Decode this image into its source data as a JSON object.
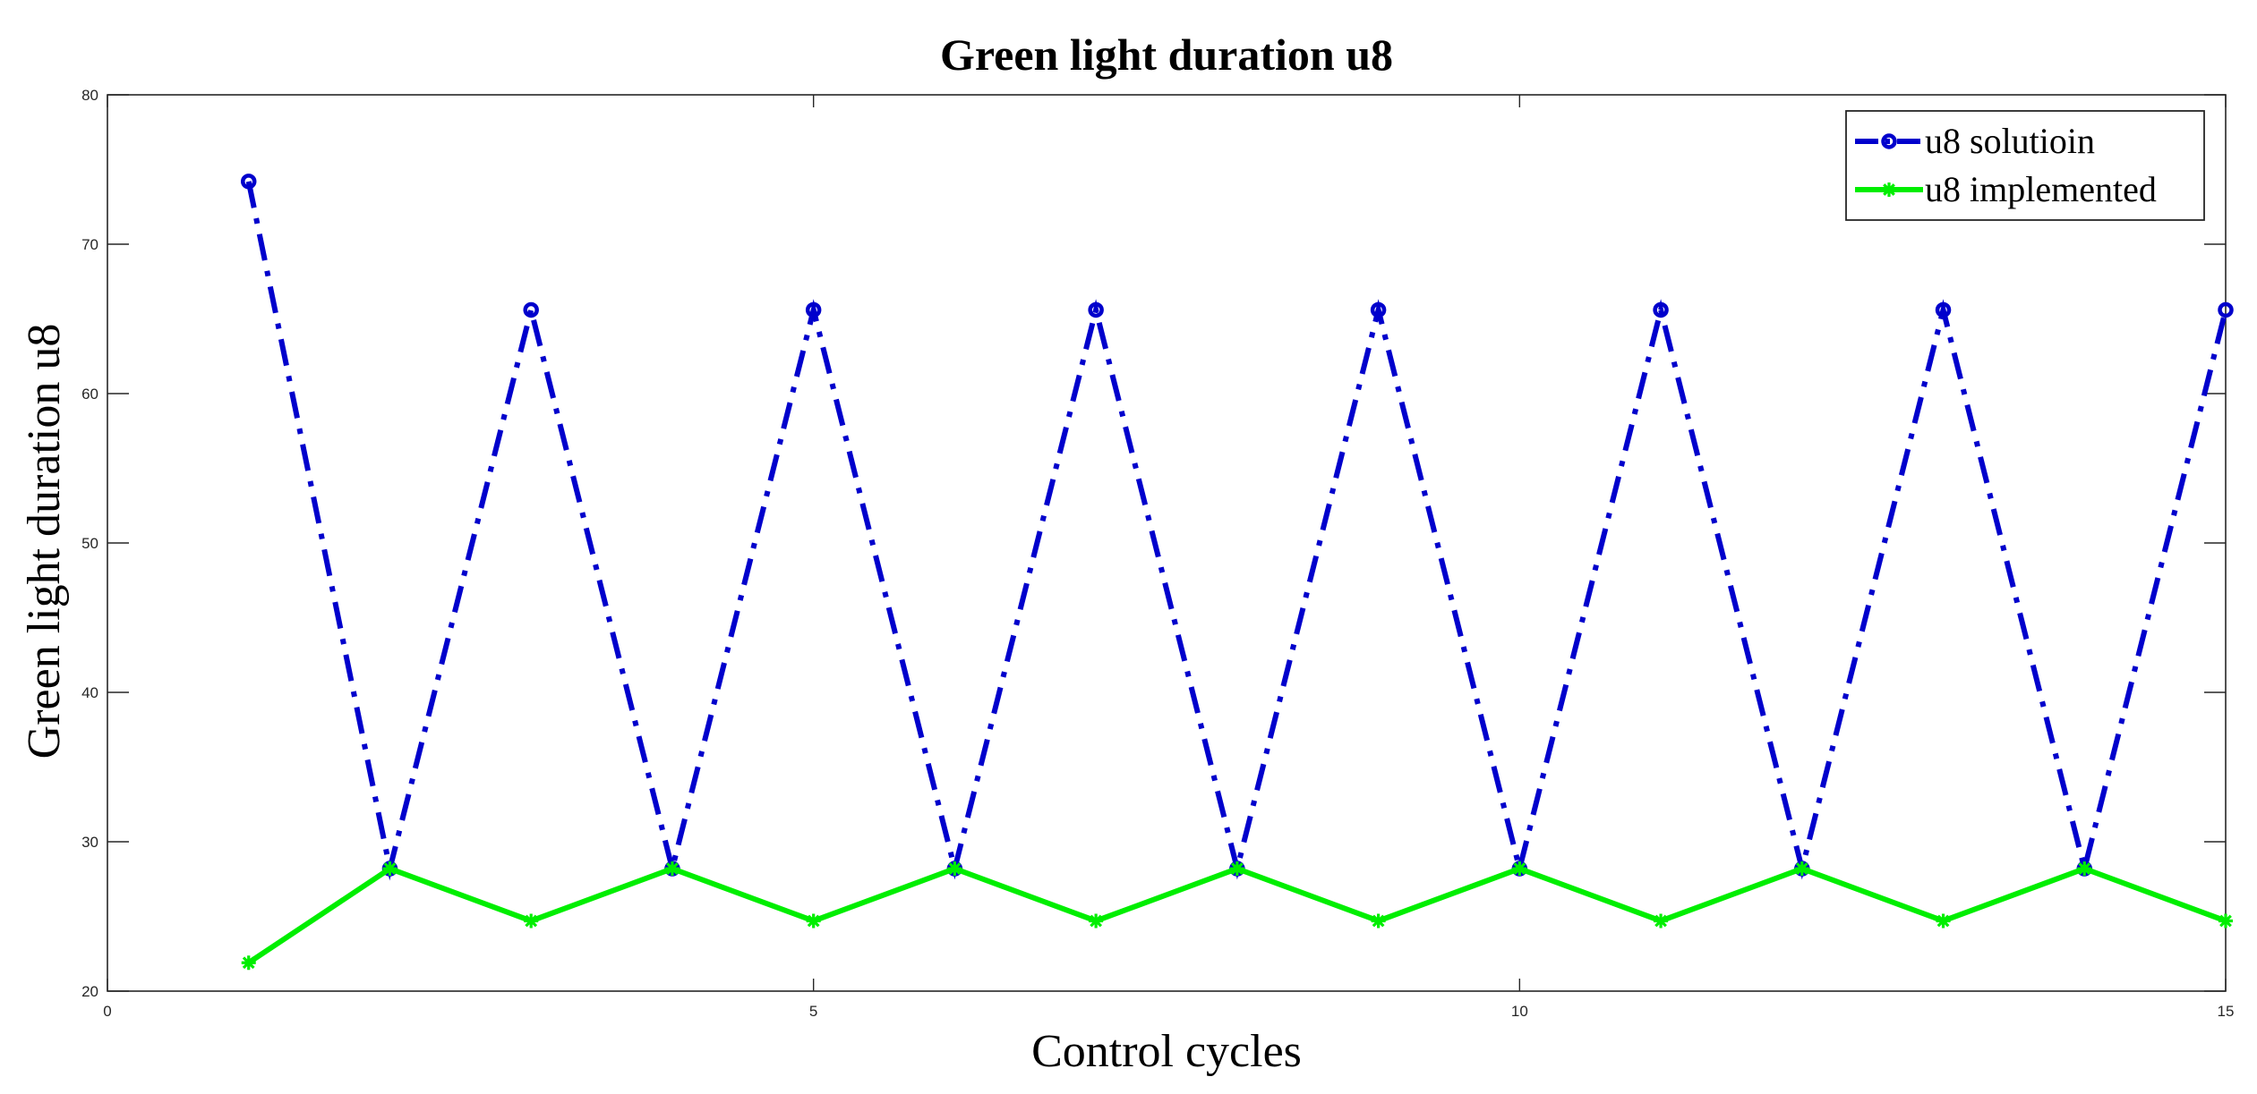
{
  "chart_data": {
    "type": "line",
    "title": "Green light duration u8",
    "xlabel": "Control cycles",
    "ylabel": "Green light duration u8",
    "xlim": [
      0,
      15
    ],
    "ylim": [
      20,
      80
    ],
    "xticks": [
      0,
      5,
      10,
      15
    ],
    "yticks": [
      20,
      30,
      40,
      50,
      60,
      70,
      80
    ],
    "grid": false,
    "legend_position": "top-right",
    "x": [
      1,
      2,
      3,
      4,
      5,
      6,
      7,
      8,
      9,
      10,
      11,
      12,
      13,
      14,
      15
    ],
    "series": [
      {
        "name": "u8 solutioin",
        "color": "#0000cc",
        "line_style": "dash-dot",
        "marker": "circle",
        "values": [
          74.2,
          28.2,
          65.6,
          28.2,
          65.6,
          28.2,
          65.6,
          28.2,
          65.6,
          28.2,
          65.6,
          28.2,
          65.6,
          28.2,
          65.6
        ]
      },
      {
        "name": "u8 implemented",
        "color": "#00ee00",
        "line_style": "solid",
        "marker": "star",
        "values": [
          21.9,
          28.2,
          24.7,
          28.2,
          24.7,
          28.2,
          24.7,
          28.2,
          24.7,
          28.2,
          24.7,
          28.2,
          24.7,
          28.2,
          24.7
        ]
      }
    ]
  }
}
